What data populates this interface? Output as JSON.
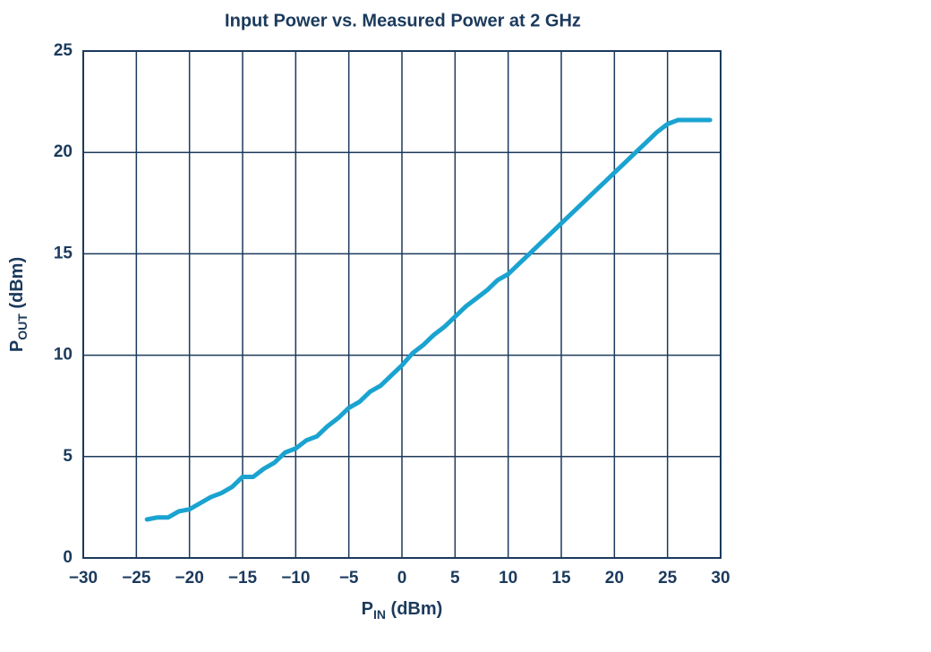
{
  "chart_data": {
    "type": "line",
    "title": "Input Power vs. Measured Power at 2 GHz",
    "xlabel_parts": [
      "P",
      "IN",
      " (dBm)"
    ],
    "ylabel_parts": [
      "P",
      "OUT",
      " (dBm)"
    ],
    "x": [
      -24,
      -23,
      -22,
      -21,
      -20,
      -19,
      -18,
      -17,
      -16,
      -15,
      -14,
      -13,
      -12,
      -11,
      -10,
      -9,
      -8,
      -7,
      -6,
      -5,
      -4,
      -3,
      -2,
      -1,
      0,
      1,
      2,
      3,
      4,
      5,
      6,
      7,
      8,
      9,
      10,
      11,
      12,
      13,
      14,
      15,
      16,
      17,
      18,
      19,
      20,
      21,
      22,
      23,
      24,
      25,
      26,
      27,
      28,
      29
    ],
    "series": [
      {
        "color": "#1aa3d0",
        "values": [
          1.9,
          2.0,
          2.0,
          2.3,
          2.4,
          2.7,
          3.0,
          3.2,
          3.5,
          4.0,
          4.0,
          4.4,
          4.7,
          5.2,
          5.4,
          5.8,
          6.0,
          6.5,
          6.9,
          7.4,
          7.7,
          8.2,
          8.5,
          9.0,
          9.5,
          10.1,
          10.5,
          11.0,
          11.4,
          11.9,
          12.4,
          12.8,
          13.2,
          13.7,
          14.0,
          14.5,
          15.0,
          15.5,
          16.0,
          16.5,
          17.0,
          17.5,
          18.0,
          18.5,
          19.0,
          19.5,
          20.0,
          20.5,
          21.0,
          21.4,
          21.6,
          21.6,
          21.6,
          21.6
        ]
      }
    ],
    "xlim": [
      -30,
      30
    ],
    "xticks": [
      {
        "value": -30,
        "label": "−30"
      },
      {
        "value": -25,
        "label": "−25"
      },
      {
        "value": -20,
        "label": "−20"
      },
      {
        "value": -15,
        "label": "−15"
      },
      {
        "value": -10,
        "label": "−10"
      },
      {
        "value": -5,
        "label": "−5"
      },
      0,
      5,
      10,
      15,
      20,
      25,
      30
    ],
    "ylim": [
      0,
      25
    ],
    "yticks": [
      0,
      5,
      10,
      15,
      20,
      25
    ],
    "grid": true,
    "grid_color": "#1b3a5c"
  }
}
